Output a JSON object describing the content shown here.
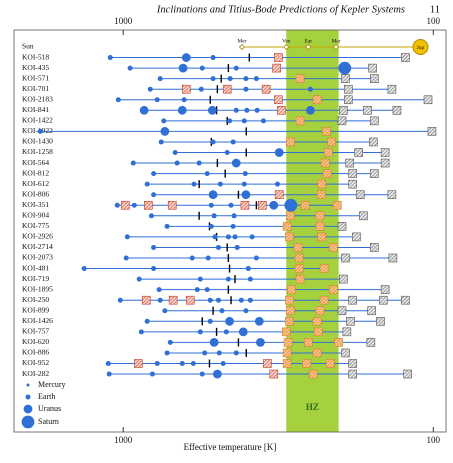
{
  "chart_data": {
    "type": "dot",
    "title": "Inclinations and Titius-Bode Predictions of Kepler Systems",
    "page_number": "11",
    "xlabel": "Effective temperature [K]",
    "xscale": "log",
    "xlim": [
      2250,
      91
    ],
    "xticks": [
      1000,
      100
    ],
    "hz": [
      298,
      202
    ],
    "hz_label": "HZ",
    "hz_color": "#a6d13f",
    "planet_color": "#2f6fd6",
    "legend": [
      "Mercury",
      "Earth",
      "Uranus",
      "Saturn"
    ],
    "sun": {
      "label": "Sun",
      "solar": [
        {
          "name": "Mer",
          "t": 414
        },
        {
          "name": "Ven",
          "t": 298
        },
        {
          "name": "Ear",
          "t": 253
        },
        {
          "name": "Mar",
          "t": 206
        },
        {
          "name": "Jup",
          "t": 110
        }
      ]
    },
    "rows": [
      {
        "label": "KOI-518",
        "planets": [
          {
            "t": 1101,
            "size": "Earth"
          },
          {
            "t": 626,
            "size": "Uranus"
          },
          {
            "t": 513,
            "size": "Earth"
          }
        ],
        "tick": 392,
        "predicted": [
          316,
          123
        ]
      },
      {
        "label": "KOI-435",
        "planets": [
          {
            "t": 950,
            "size": "Earth"
          },
          {
            "t": 641,
            "size": "Uranus"
          },
          {
            "t": 556,
            "size": "Earth"
          },
          {
            "t": 432,
            "size": "Earth"
          },
          {
            "t": 193,
            "size": "Saturn"
          }
        ],
        "tick": 458,
        "predicted": [
          320,
          157
        ]
      },
      {
        "label": "KOI-571",
        "planets": [
          {
            "t": 760,
            "size": "Earth"
          },
          {
            "t": 513,
            "size": "Earth"
          },
          {
            "t": 452,
            "size": "Earth"
          },
          {
            "t": 402,
            "size": "Earth"
          },
          {
            "t": 372,
            "size": "Earth"
          }
        ],
        "tick": 483,
        "predicted": [
          269,
          192,
          155
        ]
      },
      {
        "label": "KOI-701",
        "planets": [
          {
            "t": 818,
            "size": "Earth"
          },
          {
            "t": 560,
            "size": "Earth"
          },
          {
            "t": 402,
            "size": "Earth"
          },
          {
            "t": 249,
            "size": "Earth"
          }
        ],
        "tick": 497,
        "predicted": [
          626,
          462,
          346,
          188,
          136
        ]
      },
      {
        "label": "KOI-2183",
        "planets": [
          {
            "t": 1037,
            "size": "Earth"
          },
          {
            "t": 777,
            "size": "Earth"
          },
          {
            "t": 636,
            "size": "Earth"
          }
        ],
        "tick": 524,
        "predicted": [
          316,
          237,
          188,
          104
        ]
      },
      {
        "label": "KOI-841",
        "planets": [
          {
            "t": 856,
            "size": "Uranus"
          },
          {
            "t": 645,
            "size": "Uranus"
          },
          {
            "t": 516,
            "size": "Uranus"
          },
          {
            "t": 432,
            "size": "Earth"
          },
          {
            "t": 399,
            "size": "Earth"
          },
          {
            "t": 370,
            "size": "Earth"
          },
          {
            "t": 249,
            "size": "Uranus"
          }
        ],
        "tick": 500,
        "predicted": [
          309,
          195,
          163,
          131
        ]
      },
      {
        "label": "KOI-1422",
        "planets": [
          {
            "t": 740,
            "size": "Earth"
          },
          {
            "t": 454,
            "size": "Earth"
          },
          {
            "t": 407,
            "size": "Earth"
          },
          {
            "t": 353,
            "size": "Earth"
          }
        ],
        "tick": 462,
        "predicted": [
          269,
          197,
          155
        ]
      },
      {
        "label": "KOI-1922",
        "planets": [
          {
            "t": 1852,
            "size": "Earth"
          },
          {
            "t": 734,
            "size": "Uranus"
          }
        ],
        "tick": 401,
        "predicted": [
          221,
          101
        ]
      },
      {
        "label": "KOI-1430",
        "planets": [
          {
            "t": 754,
            "size": "Earth"
          },
          {
            "t": 513,
            "size": "Earth"
          },
          {
            "t": 442,
            "size": "Earth"
          }
        ],
        "tick": 520,
        "predicted": [
          289,
          213,
          156
        ]
      },
      {
        "label": "KOI-1258",
        "planets": [
          {
            "t": 680,
            "size": "Earth"
          },
          {
            "t": 462,
            "size": "Earth"
          },
          {
            "t": 314,
            "size": "Uranus"
          }
        ],
        "tick": 401,
        "predicted": [
          218,
          174,
          143
        ]
      },
      {
        "label": "KOI-564",
        "planets": [
          {
            "t": 928,
            "size": "Earth"
          },
          {
            "t": 670,
            "size": "Earth"
          },
          {
            "t": 569,
            "size": "Earth"
          },
          {
            "t": 432,
            "size": "Uranus"
          }
        ],
        "tick": 497,
        "predicted": [
          223,
          186,
          143
        ]
      },
      {
        "label": "KOI-812",
        "planets": [
          {
            "t": 798,
            "size": "Earth"
          },
          {
            "t": 536,
            "size": "Earth"
          },
          {
            "t": 404,
            "size": "Earth"
          }
        ],
        "tick": 469,
        "predicted": [
          220,
          182,
          155
        ]
      },
      {
        "label": "KOI-612",
        "planets": [
          {
            "t": 837,
            "size": "Earth"
          },
          {
            "t": 591,
            "size": "Earth"
          },
          {
            "t": 486,
            "size": "Earth"
          },
          {
            "t": 407,
            "size": "Earth"
          },
          {
            "t": 318,
            "size": "Earth"
          }
        ],
        "tick": 569,
        "predicted": [
          229,
          182
        ]
      },
      {
        "label": "KOI-806",
        "planets": [
          {
            "t": 798,
            "size": "Earth"
          },
          {
            "t": 513,
            "size": "Uranus"
          },
          {
            "t": 402,
            "size": "Uranus"
          }
        ],
        "tick": 425,
        "predicted": [
          314,
          230,
          172,
          136
        ]
      },
      {
        "label": "KOI-351",
        "planets": [
          {
            "t": 1045,
            "size": "Earth"
          },
          {
            "t": 921,
            "size": "Earth"
          },
          {
            "t": 520,
            "size": "Earth"
          },
          {
            "t": 449,
            "size": "Earth"
          },
          {
            "t": 327,
            "size": "Uranus"
          },
          {
            "t": 288,
            "size": "Saturn"
          }
        ],
        "tick": 372,
        "predicted": [
          985,
          830,
          695,
          405,
          356,
          259,
          204
        ]
      },
      {
        "label": "KOI-904",
        "planets": [
          {
            "t": 811,
            "size": "Earth"
          },
          {
            "t": 509,
            "size": "Earth"
          },
          {
            "t": 439,
            "size": "Earth"
          }
        ],
        "tick": 569,
        "predicted": [
          289,
          232,
          168
        ]
      },
      {
        "label": "KOI-775",
        "planets": [
          {
            "t": 722,
            "size": "Earth"
          },
          {
            "t": 520,
            "size": "Earth"
          },
          {
            "t": 442,
            "size": "Earth"
          }
        ],
        "tick": 527,
        "predicted": [
          296,
          232,
          197
        ]
      },
      {
        "label": "KOI-2926",
        "planets": [
          {
            "t": 970,
            "size": "Earth"
          },
          {
            "t": 506,
            "size": "Earth"
          },
          {
            "t": 458,
            "size": "Earth"
          },
          {
            "t": 436,
            "size": "Earth"
          },
          {
            "t": 384,
            "size": "Earth"
          }
        ],
        "tick": 500,
        "predicted": [
          291,
          229,
          177
        ]
      },
      {
        "label": "KOI-2714",
        "planets": [
          {
            "t": 798,
            "size": "Earth"
          },
          {
            "t": 493,
            "size": "Earth"
          },
          {
            "t": 429,
            "size": "Earth"
          }
        ],
        "tick": 462,
        "predicted": [
          273,
          210,
          155
        ]
      },
      {
        "label": "KOI-2073",
        "planets": [
          {
            "t": 978,
            "size": "Earth"
          },
          {
            "t": 599,
            "size": "Earth"
          },
          {
            "t": 532,
            "size": "Earth"
          },
          {
            "t": 372,
            "size": "Earth"
          }
        ],
        "tick": 458,
        "predicted": [
          271,
          192,
          135
        ]
      },
      {
        "label": "KOI-481",
        "planets": [
          {
            "t": 1336,
            "size": "Earth"
          },
          {
            "t": 798,
            "size": "Earth"
          },
          {
            "t": 395,
            "size": "Earth"
          }
        ],
        "tick": 454,
        "predicted": [
          271,
          225
        ]
      },
      {
        "label": "KOI-719",
        "planets": [
          {
            "t": 888,
            "size": "Earth"
          },
          {
            "t": 564,
            "size": "Earth"
          },
          {
            "t": 458,
            "size": "Earth"
          },
          {
            "t": 389,
            "size": "Earth"
          }
        ],
        "tick": 436,
        "predicted": [
          269,
          195
        ]
      },
      {
        "label": "KOI-1895",
        "planets": [
          {
            "t": 766,
            "size": "Earth"
          },
          {
            "t": 577,
            "size": "Earth"
          },
          {
            "t": 536,
            "size": "Earth"
          }
        ],
        "tick": 458,
        "predicted": [
          287,
          210,
          143
        ]
      },
      {
        "label": "KOI-250",
        "planets": [
          {
            "t": 1022,
            "size": "Earth"
          },
          {
            "t": 760,
            "size": "Earth"
          },
          {
            "t": 524,
            "size": "Earth"
          },
          {
            "t": 493,
            "size": "Earth"
          },
          {
            "t": 416,
            "size": "Earth"
          },
          {
            "t": 389,
            "size": "Earth"
          }
        ],
        "tick": 449,
        "predicted": [
          843,
          690,
          608,
          291,
          225,
          182,
          145,
          123
        ]
      },
      {
        "label": "KOI-899",
        "planets": [
          {
            "t": 734,
            "size": "Earth"
          },
          {
            "t": 480,
            "size": "Earth"
          },
          {
            "t": 402,
            "size": "Earth"
          }
        ],
        "tick": 513,
        "predicted": [
          289,
          232,
          197,
          158
        ]
      },
      {
        "label": "KOI-1426",
        "planets": [
          {
            "t": 837,
            "size": "Earth"
          },
          {
            "t": 524,
            "size": "Earth"
          },
          {
            "t": 454,
            "size": "Uranus"
          },
          {
            "t": 364,
            "size": "Uranus"
          }
        ],
        "tick": 556,
        "predicted": [
          291,
          237,
          185,
          148
        ]
      },
      {
        "label": "KOI-757",
        "planets": [
          {
            "t": 874,
            "size": "Earth"
          },
          {
            "t": 564,
            "size": "Earth"
          },
          {
            "t": 465,
            "size": "Earth"
          },
          {
            "t": 410,
            "size": "Uranus"
          }
        ],
        "tick": 500,
        "predicted": [
          298,
          235,
          190
        ]
      },
      {
        "label": "KOI-620",
        "planets": [
          {
            "t": 705,
            "size": "Earth"
          },
          {
            "t": 509,
            "size": "Uranus"
          },
          {
            "t": 361,
            "size": "Uranus"
          }
        ],
        "tick": 425,
        "predicted": [
          294,
          253,
          202,
          159
        ]
      },
      {
        "label": "KOI-886",
        "planets": [
          {
            "t": 722,
            "size": "Earth"
          },
          {
            "t": 546,
            "size": "Earth"
          },
          {
            "t": 490,
            "size": "Earth"
          },
          {
            "t": 432,
            "size": "Earth"
          }
        ],
        "tick": 401,
        "predicted": [
          296,
          237,
          192
        ]
      },
      {
        "label": "KOI-952",
        "planets": [
          {
            "t": 1117,
            "size": "Earth"
          },
          {
            "t": 777,
            "size": "Earth"
          },
          {
            "t": 645,
            "size": "Earth"
          },
          {
            "t": 594,
            "size": "Earth"
          },
          {
            "t": 476,
            "size": "Earth"
          }
        ],
        "tick": 527,
        "predicted": [
          894,
          343,
          296,
          256,
          215,
          182
        ]
      },
      {
        "label": "KOI-282",
        "planets": [
          {
            "t": 1110,
            "size": "Earth"
          },
          {
            "t": 805,
            "size": "Earth"
          },
          {
            "t": 556,
            "size": "Earth"
          },
          {
            "t": 497,
            "size": "Uranus"
          }
        ],
        "tick": 497,
        "predicted": [
          327,
          244,
          182,
          121
        ]
      }
    ]
  }
}
